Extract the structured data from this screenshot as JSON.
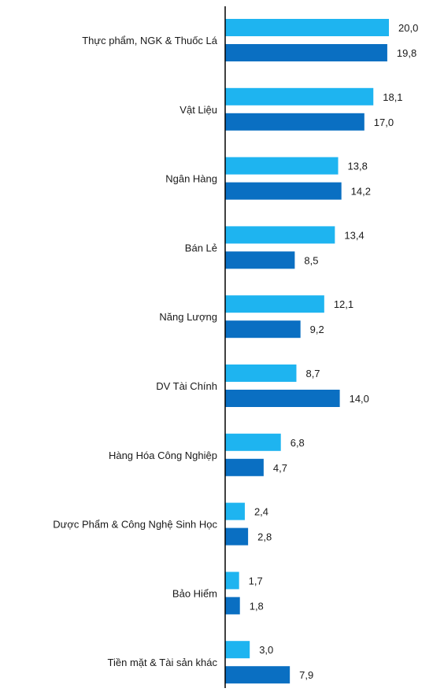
{
  "chart_data": {
    "type": "bar",
    "orientation": "horizontal",
    "categories": [
      "Thực phẩm,  NGK & Thuốc Lá",
      "Vật Liệu",
      "Ngân Hàng",
      "Bán Lẻ",
      "Năng Lượng",
      "DV Tài Chính",
      "Hàng Hóa Công Nghiệp",
      "Dược Phẩm & Công Nghệ Sinh Học",
      "Bảo Hiểm",
      "Tiền mặt & Tài sản khác"
    ],
    "series": [
      {
        "values": [
          20.0,
          18.1,
          13.8,
          13.4,
          12.1,
          8.7,
          6.8,
          2.4,
          1.7,
          3.0
        ],
        "labels": [
          "20,0",
          "18,1",
          "13,8",
          "13,4",
          "12,1",
          "8,7",
          "6,8",
          "2,4",
          "1,7",
          "3,0"
        ],
        "color": "#1EB4F0"
      },
      {
        "values": [
          19.8,
          17.0,
          14.2,
          8.5,
          9.2,
          14.0,
          4.7,
          2.8,
          1.8,
          7.9
        ],
        "labels": [
          "19,8",
          "17,0",
          "14,2",
          "8,5",
          "9,2",
          "14,0",
          "4,7",
          "2,8",
          "1,8",
          "7,9"
        ],
        "color": "#0A6FC2"
      }
    ],
    "xlim": [
      0,
      20.0
    ],
    "grid": false,
    "axis_color": "#000000"
  }
}
